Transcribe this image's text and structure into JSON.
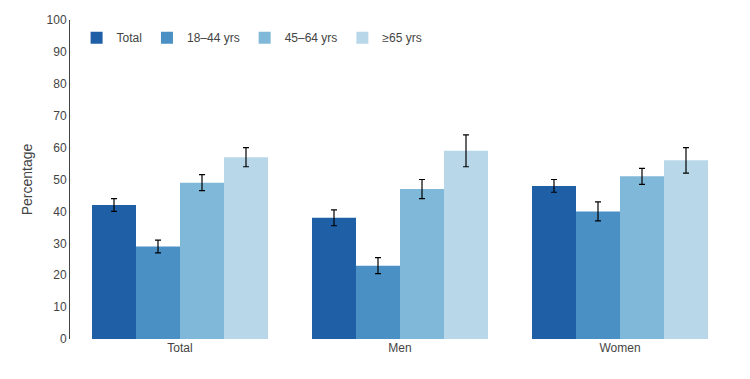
{
  "chart_data": {
    "type": "bar",
    "ylabel": "Percentage",
    "categories": [
      "Total",
      "Men",
      "Women"
    ],
    "series": [
      {
        "name": "Total",
        "color": "#1f5fa6",
        "values": [
          42,
          38,
          48
        ],
        "errors": [
          2.0,
          2.5,
          2.0
        ]
      },
      {
        "name": "18–44 yrs",
        "color": "#4a90c4",
        "values": [
          29,
          23,
          40
        ],
        "errors": [
          2.0,
          2.5,
          3.0
        ]
      },
      {
        "name": "45–64 yrs",
        "color": "#7fb8d8",
        "values": [
          49,
          47,
          51
        ],
        "errors": [
          2.5,
          3.0,
          2.5
        ]
      },
      {
        "name": "≥65 yrs",
        "color": "#b8d8ea",
        "values": [
          57,
          59,
          56
        ],
        "errors": [
          3.0,
          5.0,
          4.0
        ]
      }
    ],
    "ylim": [
      0,
      100
    ],
    "yticks": [
      0,
      10,
      20,
      30,
      40,
      50,
      60,
      70,
      80,
      90,
      100
    ],
    "grid": false,
    "legend": "upper left"
  }
}
